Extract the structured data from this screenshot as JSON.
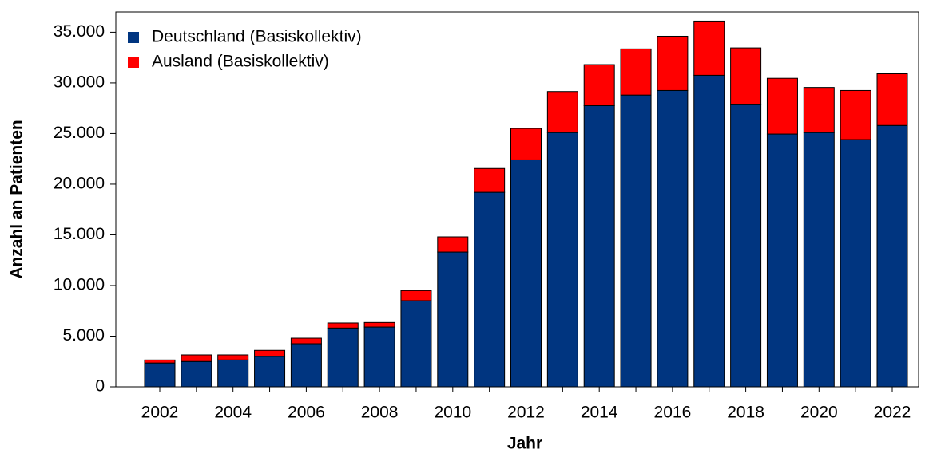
{
  "chart_data": {
    "type": "stacked_bar",
    "y_label": "Anzahl an Patienten",
    "x_label": "Jahr",
    "categories": [
      "2002",
      null,
      "2004",
      null,
      "2006",
      null,
      "2008",
      null,
      "2010",
      null,
      "2012",
      null,
      "2014",
      null,
      "2016",
      null,
      "2018",
      null,
      "2020",
      null,
      "2022"
    ],
    "series": [
      {
        "name": "Deutschland (Basiskollektiv)",
        "color": "#003580",
        "values": [
          2350,
          2500,
          2650,
          3000,
          4250,
          5800,
          5900,
          8500,
          13300,
          19200,
          22400,
          25100,
          27750,
          28800,
          29250,
          30750,
          27850,
          24950,
          25100,
          24400,
          25800
        ]
      },
      {
        "name": "Ausland (Basiskollektiv)",
        "color": "#ff0000",
        "values": [
          300,
          650,
          500,
          600,
          550,
          500,
          450,
          1000,
          1500,
          2350,
          3100,
          4050,
          4050,
          4550,
          5350,
          5350,
          5600,
          5500,
          4450,
          4850,
          5100
        ]
      }
    ],
    "ylim": [
      0,
      37000
    ],
    "yticks": [
      0,
      {
        "value": 5000,
        "label": "5.000"
      },
      {
        "value": 10000,
        "label": "10.000"
      },
      {
        "value": 15000,
        "label": "15.000"
      },
      {
        "value": 20000,
        "label": "20.000"
      },
      {
        "value": 25000,
        "label": "25.000"
      },
      {
        "value": 30000,
        "label": "30.000"
      },
      {
        "value": 35000,
        "label": "35.000"
      }
    ],
    "legend": "upper left"
  }
}
